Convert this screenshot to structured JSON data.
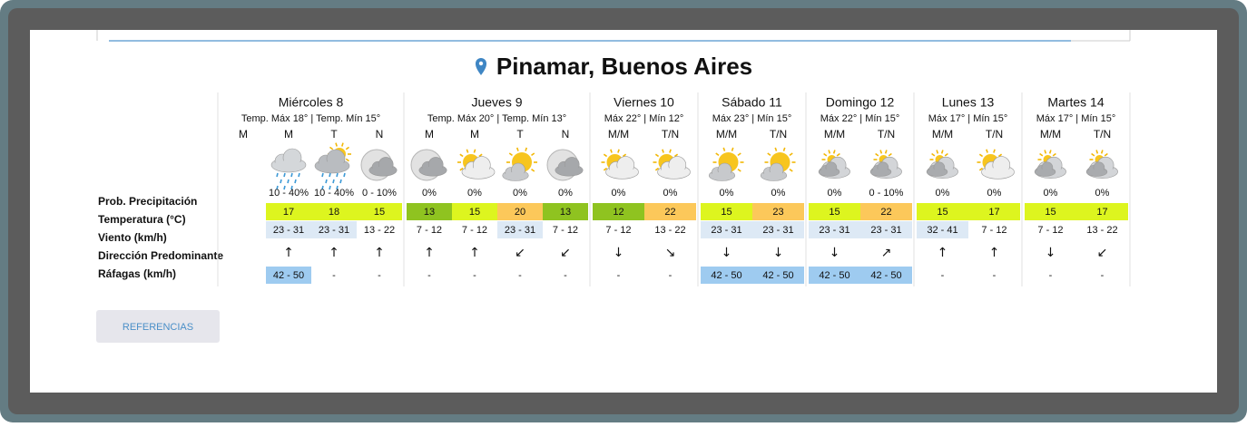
{
  "title": "Pinamar, Buenos Aires",
  "row_labels": [
    "Prob. Precipitación",
    "Temperatura (°C)",
    "Viento (km/h)",
    "Dirección Predominante",
    "Ráfagas (km/h)"
  ],
  "days": [
    {
      "name": "Miércoles 8",
      "temps": "Temp. Máx 18° | Temp. Mín 15°",
      "periods": [
        {
          "label": "M"
        },
        {
          "label": "M",
          "icon": "rain",
          "precip": "10 - 40%",
          "temp": 17,
          "temp_color": "#ddf51f",
          "wind": "23 - 31",
          "wind_color": "#dde9f5",
          "direction": "↑",
          "gusts": "42 - 50",
          "gust_color": "#9ecbf0"
        },
        {
          "label": "T",
          "icon": "sun-rain",
          "precip": "10 - 40%",
          "temp": 18,
          "temp_color": "#ddf51f",
          "wind": "23 - 31",
          "wind_color": "#dde9f5",
          "direction": "↑",
          "gusts": "-"
        },
        {
          "label": "N",
          "icon": "moon-cloud",
          "precip": "0 - 10%",
          "temp": 15,
          "temp_color": "#ddf51f",
          "wind": "13 - 22",
          "direction": "↑",
          "gusts": "-"
        }
      ]
    },
    {
      "name": "Jueves 9",
      "temps": "Temp. Máx 20° | Temp. Mín 13°",
      "periods": [
        {
          "label": "M",
          "icon": "moon-cloud",
          "precip": "0%",
          "temp": 13,
          "temp_color": "#8fc320",
          "wind": "7 - 12",
          "direction": "↑",
          "gusts": "-"
        },
        {
          "label": "M",
          "icon": "sun-cloud",
          "precip": "0%",
          "temp": 15,
          "temp_color": "#ddf51f",
          "wind": "7 - 12",
          "direction": "↑",
          "gusts": "-"
        },
        {
          "label": "T",
          "icon": "sun-cloud-small",
          "precip": "0%",
          "temp": 20,
          "temp_color": "#fcc85a",
          "wind": "23 - 31",
          "wind_color": "#dde9f5",
          "direction": "↙",
          "gusts": "-"
        },
        {
          "label": "N",
          "icon": "moon-cloud",
          "precip": "0%",
          "temp": 13,
          "temp_color": "#8fc320",
          "wind": "7 - 12",
          "direction": "↙",
          "gusts": "-"
        }
      ]
    },
    {
      "name": "Viernes 10",
      "temps": "Máx 22° | Mín 12°",
      "periods": [
        {
          "label": "M/M",
          "icon": "sun-cloud",
          "precip": "0%",
          "temp": 12,
          "temp_color": "#8fc320",
          "wind": "7 - 12",
          "direction": "↓",
          "gusts": "-"
        },
        {
          "label": "T/N",
          "icon": "sun-cloud",
          "precip": "0%",
          "temp": 22,
          "temp_color": "#fcc85a",
          "wind": "13 - 22",
          "direction": "↘",
          "gusts": "-"
        }
      ]
    },
    {
      "name": "Sábado 11",
      "temps": "Máx 23° | Mín 15°",
      "periods": [
        {
          "label": "M/M",
          "icon": "sun-cloud-small",
          "precip": "0%",
          "temp": 15,
          "temp_color": "#ddf51f",
          "wind": "23 - 31",
          "wind_color": "#dde9f5",
          "direction": "↓",
          "gusts": "42 - 50",
          "gust_color": "#9ecbf0"
        },
        {
          "label": "T/N",
          "icon": "sun-cloud-small",
          "precip": "0%",
          "temp": 23,
          "temp_color": "#fcc85a",
          "wind": "23 - 31",
          "wind_color": "#dde9f5",
          "direction": "↓",
          "gusts": "42 - 50",
          "gust_color": "#9ecbf0"
        }
      ]
    },
    {
      "name": "Domingo 12",
      "temps": "Máx 22° | Mín 15°",
      "periods": [
        {
          "label": "M/M",
          "icon": "cloudy",
          "precip": "0%",
          "temp": 15,
          "temp_color": "#ddf51f",
          "wind": "23 - 31",
          "wind_color": "#dde9f5",
          "direction": "↓",
          "gusts": "42 - 50",
          "gust_color": "#9ecbf0"
        },
        {
          "label": "T/N",
          "icon": "cloudy",
          "precip": "0 - 10%",
          "temp": 22,
          "temp_color": "#fcc85a",
          "wind": "23 - 31",
          "wind_color": "#dde9f5",
          "direction": "↗",
          "gusts": "42 - 50",
          "gust_color": "#9ecbf0"
        }
      ]
    },
    {
      "name": "Lunes 13",
      "temps": "Máx 17° | Mín 15°",
      "periods": [
        {
          "label": "M/M",
          "icon": "cloudy",
          "precip": "0%",
          "temp": 15,
          "temp_color": "#ddf51f",
          "wind": "32 - 41",
          "wind_color": "#dde9f5",
          "direction": "↑",
          "gusts": "-"
        },
        {
          "label": "T/N",
          "icon": "sun-cloud",
          "precip": "0%",
          "temp": 17,
          "temp_color": "#ddf51f",
          "wind": "7 - 12",
          "direction": "↑",
          "gusts": "-"
        }
      ]
    },
    {
      "name": "Martes 14",
      "temps": "Máx 17° | Mín 15°",
      "periods": [
        {
          "label": "M/M",
          "icon": "cloudy",
          "precip": "0%",
          "temp": 15,
          "temp_color": "#ddf51f",
          "wind": "7 - 12",
          "direction": "↓",
          "gusts": "-"
        },
        {
          "label": "T/N",
          "icon": "cloudy",
          "precip": "0%",
          "temp": 17,
          "temp_color": "#ddf51f",
          "wind": "13 - 22",
          "direction": "↙",
          "gusts": "-"
        }
      ]
    }
  ],
  "button": "REFERENCIAS"
}
